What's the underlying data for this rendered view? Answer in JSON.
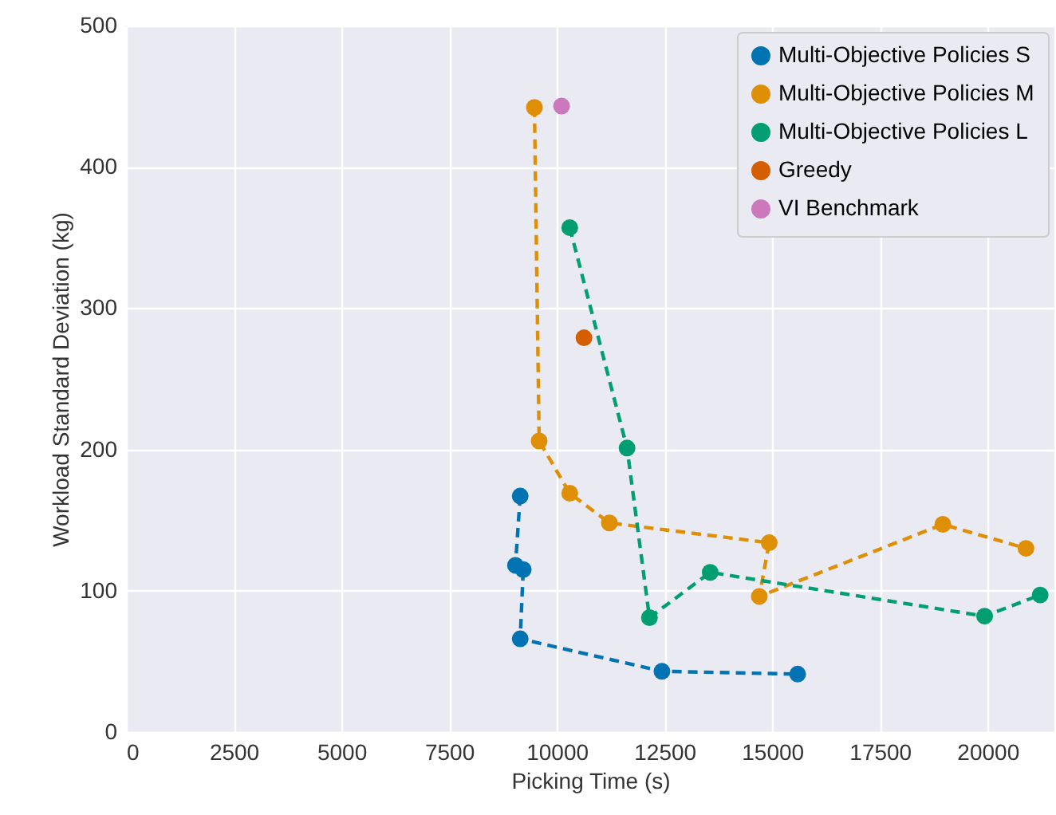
{
  "chart_data": {
    "type": "line",
    "xlabel": "Picking Time (s)",
    "ylabel": "Workload Standard Deviation (kg)",
    "xlim": [
      0,
      21550
    ],
    "xticks": [
      0,
      2500,
      5000,
      7500,
      10000,
      12500,
      15000,
      17500,
      20000
    ],
    "ylim": [
      0,
      500
    ],
    "yticks": [
      0,
      100,
      200,
      300,
      400,
      500
    ],
    "grid": true,
    "legend": "top right",
    "marker": "circle",
    "line_style": "dashed",
    "series": [
      {
        "name": "Multi-Objective Policies S",
        "color": "#0173b2",
        "x": [
          9150,
          9040,
          9220,
          9150,
          12440,
          15590
        ],
        "values": [
          167,
          118,
          115,
          66,
          43,
          41
        ]
      },
      {
        "name": "Multi-Objective Policies M",
        "color": "#de8f05",
        "x": [
          9480,
          9590,
          10300,
          11220,
          14930,
          14700,
          18960,
          20890
        ],
        "values": [
          442,
          206,
          169,
          148,
          134,
          96,
          147,
          130
        ]
      },
      {
        "name": "Multi-Objective Policies L",
        "color": "#029e73",
        "x": [
          10300,
          11630,
          12150,
          13560,
          19930,
          21220
        ],
        "values": [
          357,
          201,
          81,
          113,
          82,
          97
        ]
      },
      {
        "name": "Greedy",
        "type": "scatter",
        "color": "#d55e00",
        "x": [
          10630
        ],
        "values": [
          279
        ]
      },
      {
        "name": "VI Benchmark",
        "type": "scatter",
        "color": "#cc78bc",
        "x": [
          10110
        ],
        "values": [
          443
        ]
      }
    ]
  }
}
